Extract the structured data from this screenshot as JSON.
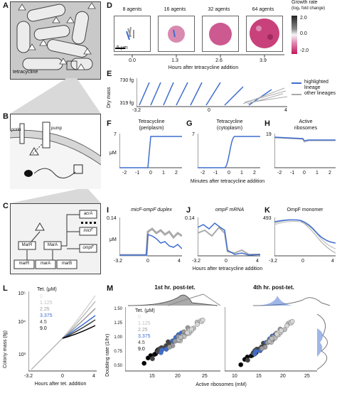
{
  "panels": {
    "a": "A",
    "b": "B",
    "c": "C",
    "d": "D",
    "e": "E",
    "f": "F",
    "g": "G",
    "h": "H",
    "i": "I",
    "j": "J",
    "k": "K",
    "l": "L",
    "m": "M"
  },
  "colors": {
    "highlight": "#3f6ecf",
    "other": "#aaaaaa",
    "cell_gray": "#cfcfcf",
    "agent_pink": "#c8417b",
    "colorbar_top": "#222222",
    "colorbar_bottom": "#c2185b"
  },
  "panel_a": {
    "label": "tetracycline"
  },
  "panel_b": {
    "porin": "porin",
    "pump": "pump"
  },
  "panel_c": {
    "genes": [
      "marR",
      "marA",
      "marB"
    ],
    "proteins": [
      "MarR",
      "MarA"
    ],
    "targets": [
      "acrA",
      "micF",
      "ompF"
    ]
  },
  "panel_d": {
    "agents": [
      "8 agents",
      "16 agents",
      "32 agents",
      "64 agents"
    ],
    "scalebar": "5 μm",
    "times": [
      "0.0",
      "1.3",
      "2.6",
      "3.9"
    ],
    "xlabel": "Hours after tetracycline addition",
    "colorbar_title": "Growth rate",
    "colorbar_sub": "(log₂ fold change)",
    "colorbar_ticks": [
      "2.0",
      "0.0",
      "-2.0"
    ]
  },
  "panel_e": {
    "ylabel": "Dry mass",
    "yticks": [
      "730 fg",
      "319 fg"
    ],
    "xticks": [
      "-3.2",
      "0",
      "4"
    ],
    "legend": [
      "highlighted lineage",
      "other lineages"
    ]
  },
  "panel_f": {
    "title1": "Tetracycline",
    "title2": "(periplasm)",
    "ymax": "7",
    "ylabel": "μM"
  },
  "panel_g": {
    "title1": "Tetracycline",
    "title2": "(cytoplasm)",
    "ymax": "7"
  },
  "panel_h": {
    "title1": "Active",
    "title2": "ribosomes",
    "ymax": "19"
  },
  "fgh_xticks": [
    "-2",
    "-1",
    "0",
    "1",
    "2"
  ],
  "fgh_xlabel": "Minutes after tetracycline addition",
  "panel_i": {
    "title": "micF-ompF duplex",
    "ymax": "0.14",
    "ylabel": "μM"
  },
  "panel_j": {
    "title": "ompF mRNA",
    "ymax": "0.14"
  },
  "panel_k": {
    "title": "OmpF monomer",
    "ymax": "493"
  },
  "ijk_xticks": [
    "-3.2",
    "0",
    "4"
  ],
  "ijk_xlabel": "Hours after tetracycline addition",
  "panel_l": {
    "ylabel": "Colony mass (fg)",
    "yticks": [
      "10⁵",
      "10⁴",
      "10³"
    ],
    "xticks": [
      "-3.2",
      "0",
      "4"
    ],
    "xlabel": "Hours after tet. addition",
    "legend_title": "Tet. (μM)",
    "legend": [
      "0",
      "1.125",
      "2.25",
      "3.375",
      "4.5",
      "9.0"
    ],
    "legend_colors": [
      "#d6d6d6",
      "#bdbdbd",
      "#9a9a9a",
      "#3f6ecf",
      "#444444",
      "#000000"
    ]
  },
  "panel_m": {
    "title1": "1st hr. post-tet.",
    "title2": "4th hr. post-tet.",
    "ylabel": "Doubling rate (1/hr)",
    "xlabel": "Active ribosomes (mM)",
    "yticks": [
      "1.50",
      "1.25",
      "1.00",
      "0.75",
      "0.50"
    ],
    "xticks1": [
      "15",
      "20",
      "25"
    ],
    "xticks2": [
      "10",
      "15",
      "20",
      "25"
    ],
    "legend_title": "Tet. (μM)",
    "legend": [
      "0",
      "1.125",
      "2.25",
      "3.375",
      "4.5",
      "9.0"
    ]
  }
}
